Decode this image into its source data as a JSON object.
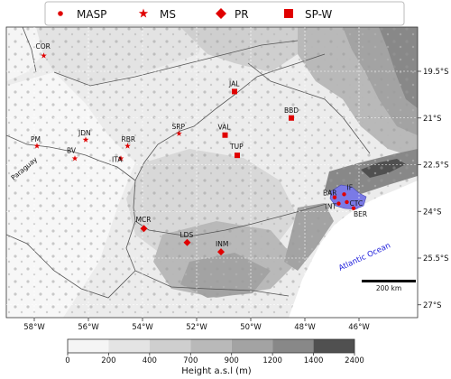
{
  "legend": {
    "items": [
      {
        "label": "MASP",
        "marker": "circle",
        "color": "#e00000"
      },
      {
        "label": "MS",
        "marker": "star",
        "color": "#e00000"
      },
      {
        "label": "PR",
        "marker": "diamond",
        "color": "#e00000"
      },
      {
        "label": "SP-W",
        "marker": "square",
        "color": "#e00000"
      }
    ]
  },
  "axes": {
    "lon_ticks": [
      "58°W",
      "56°W",
      "54°W",
      "52°W",
      "50°W",
      "48°W",
      "46°W"
    ],
    "lat_ticks": [
      "19.5°S",
      "21°S",
      "22.5°S",
      "24°S",
      "25.5°S",
      "27°S"
    ]
  },
  "stations": [
    {
      "code": "COR",
      "group": "MS",
      "lon": -57.65,
      "lat": -19.0
    },
    {
      "code": "JDN",
      "group": "MS",
      "lon": -56.1,
      "lat": -21.7
    },
    {
      "code": "PM",
      "group": "MS",
      "lon": -57.9,
      "lat": -21.9
    },
    {
      "code": "BV",
      "group": "MS",
      "lon": -56.5,
      "lat": -22.3
    },
    {
      "code": "RBR",
      "group": "MS",
      "lon": -54.55,
      "lat": -21.9
    },
    {
      "code": "ITA",
      "group": "MS",
      "lon": -54.8,
      "lat": -22.3
    },
    {
      "code": "SRP",
      "group": "MS",
      "lon": -52.65,
      "lat": -21.5
    },
    {
      "code": "JAL",
      "group": "SP-W",
      "lon": -50.6,
      "lat": -20.15
    },
    {
      "code": "BBD",
      "group": "SP-W",
      "lon": -48.5,
      "lat": -21.0
    },
    {
      "code": "VAL",
      "group": "SP-W",
      "lon": -50.95,
      "lat": -21.55
    },
    {
      "code": "TUP",
      "group": "SP-W",
      "lon": -50.5,
      "lat": -22.2
    },
    {
      "code": "MCR",
      "group": "PR",
      "lon": -53.95,
      "lat": -24.55
    },
    {
      "code": "LDS",
      "group": "PR",
      "lon": -52.35,
      "lat": -25.0
    },
    {
      "code": "INM",
      "group": "PR",
      "lon": -51.1,
      "lat": -25.3
    },
    {
      "code": "BAR",
      "group": "MASP",
      "lon": -46.9,
      "lat": -23.55
    },
    {
      "code": "IF",
      "group": "MASP",
      "lon": -46.55,
      "lat": -23.45
    },
    {
      "code": "INT",
      "group": "MASP",
      "lon": -46.75,
      "lat": -23.75
    },
    {
      "code": "CTC",
      "group": "MASP",
      "lon": -46.45,
      "lat": -23.7
    },
    {
      "code": "BER",
      "group": "MASP",
      "lon": -46.2,
      "lat": -23.9
    }
  ],
  "place_labels": {
    "paraguay": "Paraguay",
    "ocean": "Atlantic Ocean"
  },
  "scalebar_label": "200 km",
  "colorbar": {
    "ticks": [
      "0",
      "200",
      "400",
      "700",
      "900",
      "1200",
      "1400",
      "2400"
    ],
    "label": "Height a.s.l (m)",
    "colors": [
      "#f5f5f5",
      "#e4e4e4",
      "#cfcfcf",
      "#b9b9b9",
      "#a3a3a3",
      "#888888",
      "#505050"
    ]
  },
  "colors": {
    "marker": "#e00000",
    "masp_area": "#7a7ae6"
  }
}
